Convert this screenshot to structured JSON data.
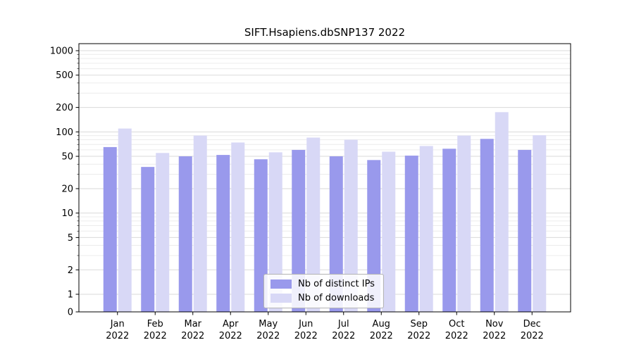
{
  "chart_data": {
    "type": "bar",
    "title": "SIFT.Hsapiens.dbSNP137 2022",
    "categories": [
      "Jan",
      "Feb",
      "Mar",
      "Apr",
      "May",
      "Jun",
      "Jul",
      "Aug",
      "Sep",
      "Oct",
      "Nov",
      "Dec"
    ],
    "year_label": "2022",
    "series": [
      {
        "name": "Nb of distinct IPs",
        "color": "#9999ec",
        "values": [
          65,
          37,
          50,
          52,
          46,
          60,
          50,
          45,
          51,
          62,
          82,
          60
        ]
      },
      {
        "name": "Nb of downloads",
        "color": "#d8d8f6",
        "values": [
          110,
          55,
          90,
          74,
          56,
          85,
          80,
          57,
          67,
          90,
          175,
          91
        ]
      }
    ],
    "y_ticks": [
      1000,
      500,
      200,
      100,
      50,
      20,
      10,
      5,
      2,
      1,
      0
    ],
    "y_scale": "log",
    "ylim": [
      0,
      1000
    ],
    "grid": true,
    "legend_position": "bottom-center",
    "colors": {
      "frame": "#000000",
      "grid_minor": "#ececec",
      "grid_major": "#dadada",
      "text": "#000000"
    }
  }
}
